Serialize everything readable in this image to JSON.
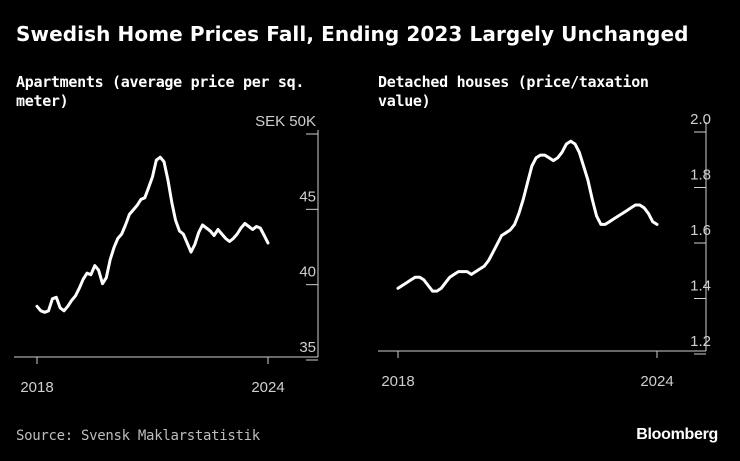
{
  "title": "Swedish Home Prices Fall, Ending 2023 Largely Unchanged",
  "source": "Source: Svensk Maklarstatistik",
  "brand": "Bloomberg",
  "colors": {
    "background": "#000000",
    "line": "#ffffff",
    "axis": "#cfcfcf"
  },
  "chart_data": [
    {
      "type": "line",
      "title": "Apartments (average price per sq. meter)",
      "xlabel": "",
      "ylabel": "",
      "xlim": [
        2018,
        2024
      ],
      "ylim": [
        35,
        50
      ],
      "x_ticks": [
        2018,
        2024
      ],
      "x_tick_labels": [
        "2018",
        "2024"
      ],
      "y_ticks": [
        35,
        40,
        45,
        50
      ],
      "y_tick_labels": [
        "35",
        "40",
        "45",
        "SEK 50K"
      ],
      "y_axis_side": "right",
      "grid": false,
      "series": [
        {
          "x": [
            2018.0,
            2018.1,
            2018.2,
            2018.3,
            2018.4,
            2018.5,
            2018.6,
            2018.7,
            2018.8,
            2018.9,
            2019.0,
            2019.1,
            2019.2,
            2019.3,
            2019.4,
            2019.5,
            2019.6,
            2019.7,
            2019.8,
            2019.9,
            2020.0,
            2020.1,
            2020.2,
            2020.3,
            2020.4,
            2020.5,
            2020.6,
            2020.7,
            2020.8,
            2020.9,
            2021.0,
            2021.1,
            2021.2,
            2021.3,
            2021.4,
            2021.5,
            2021.6,
            2021.7,
            2021.8,
            2021.9,
            2022.0,
            2022.1,
            2022.2,
            2022.3,
            2022.4,
            2022.5,
            2022.6,
            2022.7,
            2022.8,
            2022.9,
            2023.0,
            2023.1,
            2023.2,
            2023.3,
            2023.4,
            2023.5,
            2023.6,
            2023.7,
            2023.8,
            2023.9,
            2024.0
          ],
          "y": [
            37.7,
            37.4,
            37.3,
            37.4,
            38.2,
            38.3,
            37.6,
            37.4,
            37.7,
            38.1,
            38.4,
            38.9,
            39.5,
            39.9,
            39.8,
            40.4,
            40.1,
            39.2,
            39.6,
            40.8,
            41.6,
            42.2,
            42.5,
            43.1,
            43.8,
            44.1,
            44.4,
            44.8,
            44.9,
            45.6,
            46.3,
            47.4,
            47.6,
            47.3,
            46.1,
            44.6,
            43.4,
            42.7,
            42.5,
            41.9,
            41.3,
            41.8,
            42.6,
            43.1,
            42.9,
            42.7,
            42.4,
            42.8,
            42.5,
            42.2,
            42.0,
            42.2,
            42.5,
            42.9,
            43.2,
            43.0,
            42.8,
            43.0,
            42.9,
            42.4,
            41.9
          ]
        }
      ]
    },
    {
      "type": "line",
      "title": "Detached houses (price/taxation value)",
      "xlabel": "",
      "ylabel": "",
      "xlim": [
        2018,
        2024
      ],
      "ylim": [
        1.2,
        2.0
      ],
      "x_ticks": [
        2018,
        2024
      ],
      "x_tick_labels": [
        "2018",
        "2024"
      ],
      "y_ticks": [
        1.2,
        1.4,
        1.6,
        1.8,
        2.0
      ],
      "y_tick_labels": [
        "1.2",
        "1.4",
        "1.6",
        "1.8",
        "2.0"
      ],
      "y_axis_side": "right",
      "grid": false,
      "series": [
        {
          "x": [
            2018.0,
            2018.1,
            2018.2,
            2018.3,
            2018.4,
            2018.5,
            2018.6,
            2018.7,
            2018.8,
            2018.9,
            2019.0,
            2019.1,
            2019.2,
            2019.3,
            2019.4,
            2019.5,
            2019.6,
            2019.7,
            2019.8,
            2019.9,
            2020.0,
            2020.1,
            2020.2,
            2020.3,
            2020.4,
            2020.5,
            2020.6,
            2020.7,
            2020.8,
            2020.9,
            2021.0,
            2021.1,
            2021.2,
            2021.3,
            2021.4,
            2021.5,
            2021.6,
            2021.7,
            2021.8,
            2021.9,
            2022.0,
            2022.1,
            2022.2,
            2022.3,
            2022.4,
            2022.5,
            2022.6,
            2022.7,
            2022.8,
            2022.9,
            2023.0,
            2023.1,
            2023.2,
            2023.3,
            2023.4,
            2023.5,
            2023.6,
            2023.7,
            2023.8,
            2023.9,
            2024.0
          ],
          "y": [
            1.39,
            1.4,
            1.41,
            1.42,
            1.43,
            1.43,
            1.42,
            1.4,
            1.38,
            1.38,
            1.39,
            1.41,
            1.43,
            1.44,
            1.45,
            1.45,
            1.45,
            1.44,
            1.45,
            1.46,
            1.47,
            1.49,
            1.52,
            1.55,
            1.58,
            1.59,
            1.6,
            1.62,
            1.66,
            1.71,
            1.77,
            1.83,
            1.86,
            1.87,
            1.87,
            1.86,
            1.85,
            1.86,
            1.88,
            1.91,
            1.92,
            1.91,
            1.88,
            1.83,
            1.78,
            1.71,
            1.65,
            1.62,
            1.62,
            1.63,
            1.64,
            1.65,
            1.66,
            1.67,
            1.68,
            1.69,
            1.69,
            1.68,
            1.66,
            1.63,
            1.62
          ]
        }
      ]
    }
  ]
}
